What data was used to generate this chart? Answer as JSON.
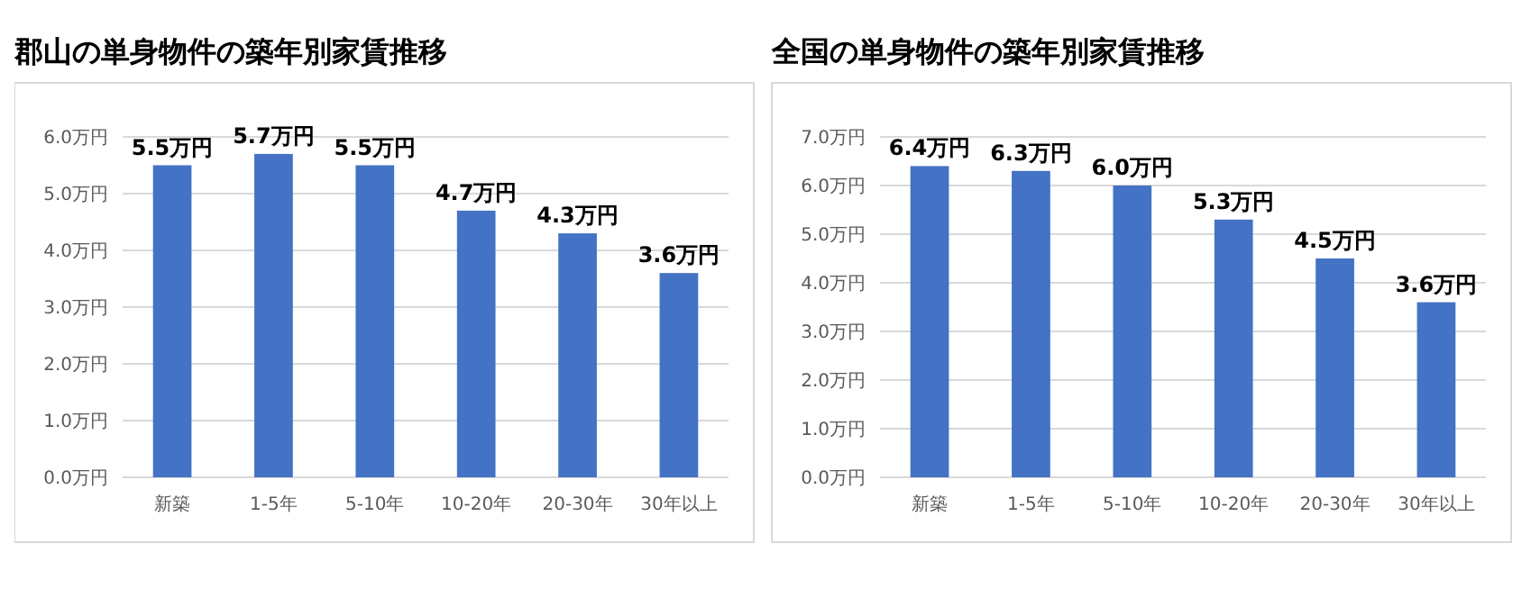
{
  "chart_data": [
    {
      "type": "bar",
      "title": "郡山の単身物件の築年別家賃推移",
      "categories": [
        "新築",
        "1-5年",
        "5-10年",
        "10-20年",
        "20-30年",
        "30年以上"
      ],
      "values": [
        5.5,
        5.7,
        5.5,
        4.7,
        4.3,
        3.6
      ],
      "value_labels": [
        "5.5万円",
        "5.7万円",
        "5.5万円",
        "4.7万円",
        "4.3万円",
        "3.6万円"
      ],
      "color": "#4472c4",
      "ylim": [
        0,
        6
      ],
      "yticks": [
        {
          "value": 0,
          "label": "0.0万円"
        },
        {
          "value": 1,
          "label": "1.0万円"
        },
        {
          "value": 2,
          "label": "2.0万円"
        },
        {
          "value": 3,
          "label": "3.0万円"
        },
        {
          "value": 4,
          "label": "4.0万円"
        },
        {
          "value": 5,
          "label": "5.0万円"
        },
        {
          "value": 6,
          "label": "6.0万円"
        }
      ],
      "grid": "y"
    },
    {
      "type": "bar",
      "title": "全国の単身物件の築年別家賃推移",
      "categories": [
        "新築",
        "1-5年",
        "5-10年",
        "10-20年",
        "20-30年",
        "30年以上"
      ],
      "values": [
        6.4,
        6.3,
        6.0,
        5.3,
        4.5,
        3.6
      ],
      "value_labels": [
        "6.4万円",
        "6.3万円",
        "6.0万円",
        "5.3万円",
        "4.5万円",
        "3.6万円"
      ],
      "color": "#4472c4",
      "ylim": [
        0,
        7
      ],
      "yticks": [
        {
          "value": 0,
          "label": "0.0万円"
        },
        {
          "value": 1,
          "label": "1.0万円"
        },
        {
          "value": 2,
          "label": "2.0万円"
        },
        {
          "value": 3,
          "label": "3.0万円"
        },
        {
          "value": 4,
          "label": "4.0万円"
        },
        {
          "value": 5,
          "label": "5.0万円"
        },
        {
          "value": 6,
          "label": "6.0万円"
        },
        {
          "value": 7,
          "label": "7.0万円"
        }
      ],
      "grid": "y"
    }
  ]
}
